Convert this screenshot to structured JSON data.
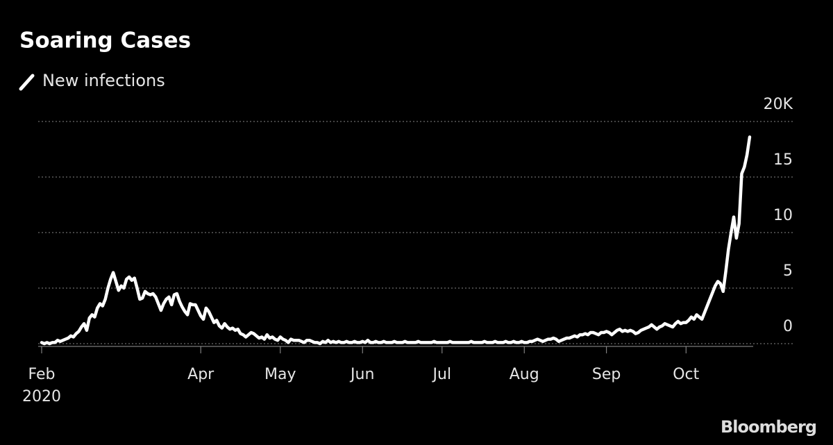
{
  "chart_data": {
    "type": "line",
    "title": "Soaring Cases",
    "source": "Bloomberg",
    "year_label": "2020",
    "categories": [
      "Feb",
      null,
      null,
      null,
      null,
      null,
      null,
      null,
      null,
      null,
      null,
      null,
      null,
      null,
      null,
      null,
      null,
      null,
      null,
      null,
      null,
      null,
      null,
      null,
      null,
      null,
      null,
      null,
      null,
      null,
      null,
      null,
      null,
      null,
      null,
      null,
      null,
      null,
      null,
      null,
      null,
      null,
      null,
      null,
      null,
      null,
      null,
      null,
      null,
      null,
      null,
      null,
      null,
      null,
      null,
      null,
      null,
      null,
      null,
      null,
      "Apr",
      null,
      null,
      null,
      null,
      null,
      null,
      null,
      null,
      null,
      null,
      null,
      null,
      null,
      null,
      null,
      null,
      null,
      null,
      null,
      null,
      null,
      null,
      null,
      null,
      null,
      null,
      null,
      null,
      null,
      "May",
      null,
      null,
      null,
      null,
      null,
      null,
      null,
      null,
      null,
      null,
      null,
      null,
      null,
      null,
      null,
      null,
      null,
      null,
      null,
      null,
      null,
      null,
      null,
      null,
      null,
      null,
      null,
      null,
      null,
      null,
      "Jun",
      null,
      null,
      null,
      null,
      null,
      null,
      null,
      null,
      null,
      null,
      null,
      null,
      null,
      null,
      null,
      null,
      null,
      null,
      null,
      null,
      null,
      null,
      null,
      null,
      null,
      null,
      null,
      null,
      null,
      "Jul",
      null,
      null,
      null,
      null,
      null,
      null,
      null,
      null,
      null,
      null,
      null,
      null,
      null,
      null,
      null,
      null,
      null,
      null,
      null,
      null,
      null,
      null,
      null,
      null,
      null,
      null,
      null,
      null,
      null,
      null,
      "Aug",
      null,
      null,
      null,
      null,
      null,
      null,
      null,
      null,
      null,
      null,
      null,
      null,
      null,
      null,
      null,
      null,
      null,
      null,
      null,
      null,
      null,
      null,
      null,
      null,
      null,
      null,
      null,
      null,
      null,
      null,
      "Sep",
      null,
      null,
      null,
      null,
      null,
      null,
      null,
      null,
      null,
      null,
      null,
      null,
      null,
      null,
      null,
      null,
      null,
      null,
      null,
      null,
      null,
      null,
      null,
      null,
      null,
      null,
      null,
      null,
      null,
      "Oct",
      null,
      null,
      null,
      null,
      null,
      null,
      null,
      null,
      null,
      null,
      null,
      null,
      null,
      null,
      null,
      null,
      null,
      null,
      null,
      null,
      null,
      null,
      null,
      null
    ],
    "series": [
      {
        "name": "New infections",
        "color": "#ffffff",
        "values": [
          0.1,
          0,
          0.1,
          0,
          0.1,
          0.1,
          0.3,
          0.2,
          0.3,
          0.4,
          0.5,
          0.7,
          0.6,
          0.9,
          1.1,
          1.5,
          1.8,
          1.2,
          2.3,
          2.6,
          2.4,
          3.2,
          3.6,
          3.4,
          4.0,
          5.0,
          5.8,
          6.4,
          5.6,
          4.8,
          5.2,
          5.0,
          5.8,
          6.0,
          5.7,
          5.9,
          5.0,
          4.0,
          4.1,
          4.7,
          4.5,
          4.4,
          4.5,
          4.2,
          3.6,
          3.0,
          3.6,
          4.0,
          4.2,
          3.5,
          4.4,
          4.5,
          3.8,
          3.3,
          2.9,
          2.6,
          3.6,
          3.5,
          3.5,
          3.0,
          2.5,
          2.2,
          3.2,
          2.9,
          2.4,
          1.9,
          2.1,
          1.6,
          1.4,
          1.8,
          1.5,
          1.3,
          1.4,
          1.2,
          1.3,
          0.9,
          0.8,
          0.6,
          0.8,
          1.0,
          0.9,
          0.7,
          0.5,
          0.6,
          0.4,
          0.8,
          0.5,
          0.6,
          0.4,
          0.3,
          0.6,
          0.4,
          0.3,
          0.1,
          0.4,
          0.3,
          0.3,
          0.3,
          0.2,
          0.1,
          0.3,
          0.3,
          0.2,
          0.1,
          0.1,
          0,
          0.2,
          0.1,
          0.3,
          0.1,
          0.2,
          0.1,
          0.2,
          0.1,
          0.1,
          0.2,
          0.1,
          0.1,
          0.2,
          0.1,
          0.1,
          0.2,
          0.1,
          0.3,
          0.1,
          0.1,
          0.2,
          0.1,
          0.1,
          0.2,
          0.1,
          0.1,
          0.1,
          0.2,
          0.1,
          0.1,
          0.1,
          0.2,
          0.1,
          0.1,
          0.1,
          0.1,
          0.2,
          0.1,
          0.1,
          0.1,
          0.1,
          0.1,
          0.2,
          0.1,
          0.1,
          0.1,
          0.1,
          0.1,
          0.2,
          0.1,
          0.1,
          0.1,
          0.1,
          0.1,
          0.1,
          0.1,
          0.2,
          0.1,
          0.1,
          0.1,
          0.1,
          0.2,
          0.1,
          0.1,
          0.1,
          0.2,
          0.1,
          0.1,
          0.1,
          0.2,
          0.1,
          0.1,
          0.2,
          0.1,
          0.1,
          0.2,
          0.1,
          0.1,
          0.2,
          0.2,
          0.3,
          0.4,
          0.3,
          0.2,
          0.3,
          0.4,
          0.4,
          0.5,
          0.4,
          0.2,
          0.3,
          0.4,
          0.5,
          0.5,
          0.6,
          0.7,
          0.6,
          0.8,
          0.8,
          0.9,
          0.8,
          1.0,
          1.0,
          0.9,
          0.8,
          1.0,
          1.0,
          1.1,
          1.0,
          0.8,
          1.0,
          1.2,
          1.3,
          1.1,
          1.2,
          1.1,
          1.2,
          1.1,
          0.9,
          1.0,
          1.2,
          1.3,
          1.4,
          1.5,
          1.7,
          1.5,
          1.3,
          1.5,
          1.6,
          1.8,
          1.7,
          1.6,
          1.5,
          1.8,
          2.0,
          1.8,
          1.9,
          1.9,
          2.1,
          2.4,
          2.2,
          2.6,
          2.4,
          2.2,
          2.8,
          3.4,
          4.0,
          4.6,
          5.2,
          5.6,
          5.4,
          4.7,
          6.5,
          8.5,
          10.0,
          11.4,
          9.5,
          10.8,
          15.3,
          15.9,
          17.0,
          18.6
        ]
      }
    ],
    "ylim": [
      0,
      20
    ],
    "yticks": [
      0,
      5,
      10,
      15,
      {
        "value": 20,
        "label": "20K"
      }
    ],
    "grid": true
  }
}
